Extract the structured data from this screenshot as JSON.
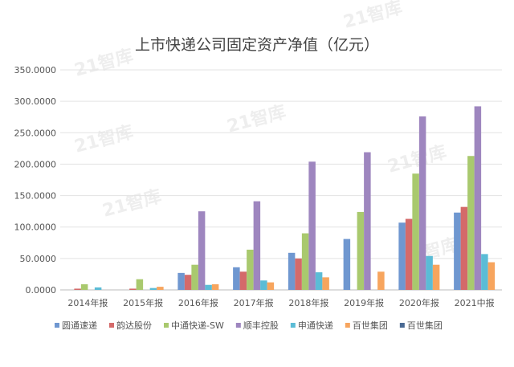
{
  "watermark": "21智库",
  "chart_data": {
    "type": "bar",
    "title": "上市快递公司固定资产净值（亿元）",
    "categories": [
      "2014年报",
      "2015年报",
      "2016年报",
      "2017年报",
      "2018年报",
      "2019年报",
      "2020年报",
      "2021中报"
    ],
    "ylim": [
      0,
      350
    ],
    "yticks": [
      "0.0000",
      "50.0000",
      "100.0000",
      "150.0000",
      "200.0000",
      "250.0000",
      "300.0000",
      "350.0000"
    ],
    "grid": true,
    "legend": "bottom",
    "series": [
      {
        "name": "圆通速递",
        "color": "#6f97d0",
        "values": [
          0,
          0,
          27,
          36,
          59,
          81,
          107,
          123
        ]
      },
      {
        "name": "韵达股份",
        "color": "#d46a6a",
        "values": [
          2,
          2,
          24,
          29,
          50,
          null,
          113,
          132
        ]
      },
      {
        "name": "中通快递-SW",
        "color": "#a9c96e",
        "values": [
          9,
          17,
          40,
          64,
          90,
          124,
          185,
          213
        ]
      },
      {
        "name": "顺丰控股",
        "color": "#9e86bf",
        "values": [
          0,
          0,
          125,
          141,
          204,
          219,
          276,
          292
        ]
      },
      {
        "name": "申通快递",
        "color": "#5bbcd6",
        "values": [
          4,
          3,
          8,
          15,
          28,
          null,
          54,
          57
        ]
      },
      {
        "name": "百世集团",
        "color": "#f7a55e",
        "values": [
          0,
          5,
          9,
          12,
          20,
          29,
          40,
          44
        ]
      },
      {
        "name": "百世集团",
        "color": "#4a6a94",
        "values": [
          null,
          null,
          null,
          null,
          null,
          null,
          null,
          null
        ]
      }
    ]
  }
}
